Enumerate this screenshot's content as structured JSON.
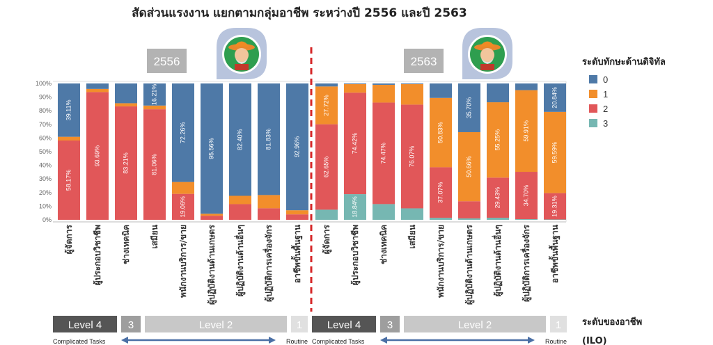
{
  "title": "สัดส่วนแรงงาน แยกตามกลุ่มอาชีพ ระหว่างปี 2556 และปี 2563",
  "chart_data": {
    "type": "bar",
    "stacked": true,
    "orientation": "vertical",
    "ylim": [
      0,
      100
    ],
    "y_ticks": [
      "0%",
      "10%",
      "20%",
      "30%",
      "40%",
      "50%",
      "60%",
      "70%",
      "80%",
      "90%",
      "100%"
    ],
    "legend": {
      "title": "ระดับทักษะด้านดิจิทัล",
      "placement": "right",
      "items": [
        {
          "label": "0",
          "color": "#4e79a7"
        },
        {
          "label": "1",
          "color": "#f28e2b"
        },
        {
          "label": "2",
          "color": "#e15759"
        },
        {
          "label": "3",
          "color": "#76b7b2"
        }
      ]
    },
    "panels": [
      {
        "year": "2556",
        "categories": [
          "ผู้จัดการ",
          "ผู้ประกอบวิชาชีพ",
          "ช่างเทคนิค",
          "เสมียน",
          "พนักงานบริการ/ขาย",
          "ผู้ปฏิบัติงานด้านเกษตร",
          "ผู้ปฏิบัติงานด้านอื่นๆ",
          "ผู้ปฏิบัติการเครื่องจักร",
          "อาชีพขั้นพื้นฐาน"
        ],
        "series": [
          {
            "name": "0",
            "values": [
              39.11,
              4.0,
              14.5,
              16.21,
              72.26,
              95.56,
              82.4,
              81.83,
              92.96
            ]
          },
          {
            "name": "1",
            "values": [
              2.72,
              2.31,
              2.29,
              2.73,
              8.68,
              1.44,
              6.1,
              9.67,
              3.04
            ]
          },
          {
            "name": "2",
            "values": [
              58.17,
              93.69,
              83.21,
              81.06,
              19.06,
              3.0,
              11.5,
              8.5,
              4.0
            ]
          },
          {
            "name": "3",
            "values": [
              0,
              0,
              0,
              0,
              0,
              0,
              0,
              0,
              0
            ]
          }
        ],
        "value_labels": [
          [
            {
              "series": 0,
              "text": "39.11%"
            },
            {
              "series": 2,
              "text": "58.17%"
            }
          ],
          [
            {
              "series": 2,
              "text": "93.69%"
            }
          ],
          [
            {
              "series": 2,
              "text": "83.21%"
            }
          ],
          [
            {
              "series": 0,
              "text": "16.21%"
            },
            {
              "series": 2,
              "text": "81.06%"
            }
          ],
          [
            {
              "series": 0,
              "text": "72.26%"
            },
            {
              "series": 2,
              "text": "19.06%"
            }
          ],
          [
            {
              "series": 0,
              "text": "95.56%"
            }
          ],
          [
            {
              "series": 0,
              "text": "82.40%"
            }
          ],
          [
            {
              "series": 0,
              "text": "81.83%"
            }
          ],
          [
            {
              "series": 0,
              "text": "92.96%"
            }
          ]
        ]
      },
      {
        "year": "2563",
        "categories": [
          "ผู้จัดการ",
          "ผู้ประกอบวิชาชีพ",
          "ช่างเทคนิค",
          "เสมียน",
          "พนักงานบริการ/ขาย",
          "ผู้ปฏิบัติงานด้านเกษตร",
          "ผู้ปฏิบัติงานด้านอื่นๆ",
          "ผู้ปฏิบัติการเครื่องจักร",
          "อาชีพขั้นพื้นฐาน"
        ],
        "series": [
          {
            "name": "0",
            "values": [
              2.2,
              0.5,
              1.0,
              0.5,
              10.6,
              35.7,
              13.8,
              4.9,
              20.84
            ]
          },
          {
            "name": "1",
            "values": [
              27.72,
              6.24,
              13.0,
              15.0,
              50.83,
              50.66,
              55.25,
              59.91,
              59.59
            ]
          },
          {
            "name": "2",
            "values": [
              62.65,
              74.42,
              74.47,
              76.07,
              37.07,
              12.6,
              29.43,
              34.7,
              19.31
            ]
          },
          {
            "name": "3",
            "values": [
              7.43,
              18.84,
              11.53,
              8.43,
              1.5,
              1.04,
              1.52,
              0.49,
              0.26
            ]
          }
        ],
        "value_labels": [
          [
            {
              "series": 1,
              "text": "27.72%"
            },
            {
              "series": 2,
              "text": "62.65%"
            }
          ],
          [
            {
              "series": 2,
              "text": "74.42%"
            },
            {
              "series": 3,
              "text": "18.84%"
            }
          ],
          [
            {
              "series": 2,
              "text": "74.47%"
            }
          ],
          [
            {
              "series": 2,
              "text": "76.07%"
            }
          ],
          [
            {
              "series": 1,
              "text": "50.83%"
            },
            {
              "series": 2,
              "text": "37.07%"
            }
          ],
          [
            {
              "series": 0,
              "text": "35.70%"
            },
            {
              "series": 1,
              "text": "50.66%"
            }
          ],
          [
            {
              "series": 1,
              "text": "55.25%"
            },
            {
              "series": 2,
              "text": "29.43%"
            }
          ],
          [
            {
              "series": 1,
              "text": "59.91%"
            },
            {
              "series": 2,
              "text": "34.70%"
            }
          ],
          [
            {
              "series": 0,
              "text": "20.84%"
            },
            {
              "series": 1,
              "text": "59.59%"
            },
            {
              "series": 2,
              "text": "19.31%"
            }
          ]
        ]
      }
    ]
  },
  "skill_levels": {
    "title_line1": "ระดับของอาชีพ",
    "title_line2": "(ILO)",
    "groups": [
      {
        "levels": [
          {
            "label": "Level 4",
            "color": "#555555"
          },
          {
            "label": "3",
            "color": "#9e9e9e"
          },
          {
            "label": "Level 2",
            "color": "#c8c8c8"
          },
          {
            "label": "1",
            "color": "#e0e0e0"
          }
        ],
        "left_text": "Complicated Tasks",
        "right_text": "Routine"
      },
      {
        "levels": [
          {
            "label": "Level 4",
            "color": "#555555"
          },
          {
            "label": "3",
            "color": "#9e9e9e"
          },
          {
            "label": "Level 2",
            "color": "#c8c8c8"
          },
          {
            "label": "1",
            "color": "#e0e0e0"
          }
        ],
        "left_text": "Complicated Tasks",
        "right_text": "Routine"
      }
    ]
  },
  "icons": [
    "farmer-avatar-icon",
    "farmer-avatar-icon"
  ],
  "colors": {
    "divider": "#d62728",
    "arrow": "#4a6fa5",
    "year_box": "#b3b3b3",
    "speech_bubble": "#b8c4dd"
  }
}
